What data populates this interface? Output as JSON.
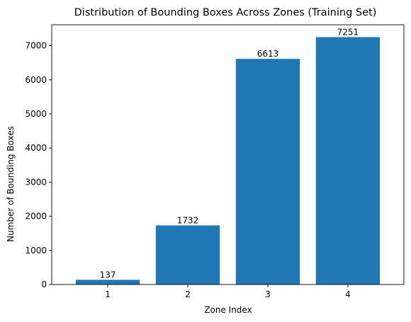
{
  "chart_data": {
    "type": "bar",
    "title": "Distribution of Bounding Boxes Across Zones (Training Set)",
    "xlabel": "Zone Index",
    "ylabel": "Number of Bounding Boxes",
    "categories": [
      "1",
      "2",
      "3",
      "4"
    ],
    "values": [
      137,
      1732,
      6613,
      7251
    ],
    "data_labels": [
      "137",
      "1732",
      "6613",
      "7251"
    ],
    "yticks": [
      0,
      1000,
      2000,
      3000,
      4000,
      5000,
      6000,
      7000
    ],
    "ylim": [
      0,
      7613
    ],
    "grid": false,
    "legend": "none",
    "bar_color": "#1f77b4"
  }
}
